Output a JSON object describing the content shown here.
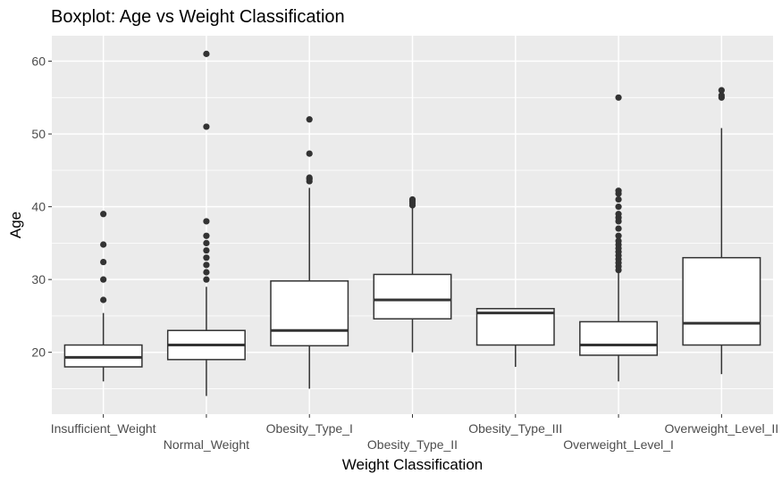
{
  "chart_data": {
    "type": "boxplot",
    "title": "Boxplot: Age vs Weight Classification",
    "xlabel": "Weight Classification",
    "ylabel": "Age",
    "ylim": [
      11.5,
      63.5
    ],
    "yticks": [
      20,
      30,
      40,
      50,
      60
    ],
    "grid": true,
    "categories": [
      "Insufficient_Weight",
      "Normal_Weight",
      "Obesity_Type_I",
      "Obesity_Type_II",
      "Obesity_Type_III",
      "Overweight_Level_I",
      "Overweight_Level_II"
    ],
    "boxes": [
      {
        "category": "Insufficient_Weight",
        "min": 16.0,
        "q1": 18.0,
        "median": 19.3,
        "q3": 21.0,
        "max": 25.4,
        "outliers": [
          27.2,
          30.0,
          32.4,
          34.8,
          39.0
        ]
      },
      {
        "category": "Normal_Weight",
        "min": 14.0,
        "q1": 19.0,
        "median": 21.0,
        "q3": 23.0,
        "max": 29.0,
        "outliers": [
          30.0,
          31.0,
          32.0,
          33.0,
          34.0,
          35.0,
          36.0,
          38.0,
          51.0,
          61.0
        ]
      },
      {
        "category": "Obesity_Type_I",
        "min": 15.0,
        "q1": 20.9,
        "median": 23.0,
        "q3": 29.8,
        "max": 42.6,
        "outliers": [
          43.5,
          43.8,
          44.0,
          47.3,
          52.0
        ]
      },
      {
        "category": "Obesity_Type_II",
        "min": 20.0,
        "q1": 24.6,
        "median": 27.2,
        "q3": 30.7,
        "max": 39.9,
        "outliers": [
          40.2,
          40.5,
          40.8,
          41.0
        ]
      },
      {
        "category": "Obesity_Type_III",
        "min": 18.0,
        "q1": 21.0,
        "median": 25.4,
        "q3": 26.0,
        "max": 26.0,
        "outliers": []
      },
      {
        "category": "Overweight_Level_I",
        "min": 16.0,
        "q1": 19.6,
        "median": 21.0,
        "q3": 24.2,
        "max": 31.0,
        "outliers": [
          31.3,
          31.8,
          32.3,
          32.8,
          33.3,
          33.8,
          34.3,
          34.8,
          35.3,
          36.0,
          37.0,
          38.0,
          38.5,
          39.0,
          40.0,
          41.0,
          41.8,
          42.2,
          55.0
        ]
      },
      {
        "category": "Overweight_Level_II",
        "min": 17.0,
        "q1": 21.0,
        "median": 24.0,
        "q3": 33.0,
        "max": 50.8,
        "outliers": [
          55.0,
          55.3,
          56.0
        ]
      }
    ]
  },
  "colors": {
    "panel_bg": "#ebebeb",
    "grid_major": "#ffffff",
    "box_fill": "#ffffff",
    "box_stroke": "#333333",
    "outlier": "#333333",
    "tick": "#333333"
  }
}
